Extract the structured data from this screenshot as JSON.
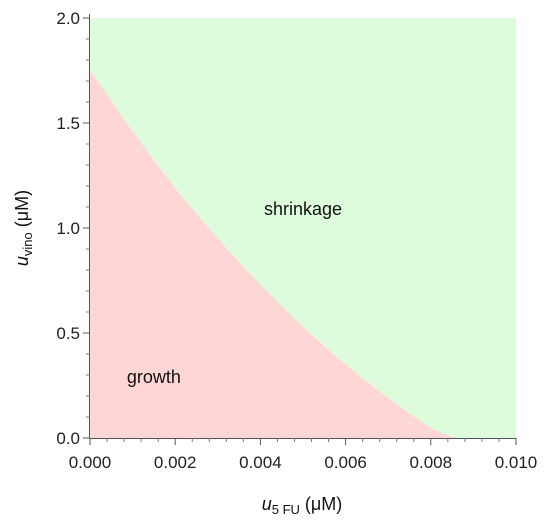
{
  "chart_data": {
    "type": "area",
    "title": "",
    "x_axis": {
      "label_main": "u",
      "label_sub": "5 FU",
      "label_unit": "(μM)",
      "range": [
        0,
        0.01
      ],
      "ticks": [
        0,
        0.002,
        0.004,
        0.006,
        0.008,
        0.01
      ],
      "tick_labels": [
        "0.000",
        "0.002",
        "0.004",
        "0.006",
        "0.008",
        "0.010"
      ]
    },
    "y_axis": {
      "label_main": "u",
      "label_sub": "vino",
      "label_unit": "(μM)",
      "range": [
        0,
        2
      ],
      "ticks": [
        0,
        0.5,
        1,
        1.5,
        2
      ],
      "tick_labels": [
        "0.0",
        "0.5",
        "1.0",
        "1.5",
        "2.0"
      ]
    },
    "regions": [
      {
        "name": "growth",
        "color": "#ffd6d6",
        "label_position": [
          0.0015,
          0.29
        ]
      },
      {
        "name": "shrinkage",
        "color": "#dcfcdc",
        "label_position": [
          0.005,
          1.09
        ]
      }
    ],
    "boundary": {
      "x": [
        0,
        0.001,
        0.002,
        0.003,
        0.004,
        0.005,
        0.006,
        0.007,
        0.008,
        0.0086
      ],
      "y": [
        1.75,
        1.46,
        1.19,
        0.95,
        0.73,
        0.53,
        0.35,
        0.19,
        0.05,
        0.0
      ]
    },
    "grid": false,
    "legend": "none"
  }
}
